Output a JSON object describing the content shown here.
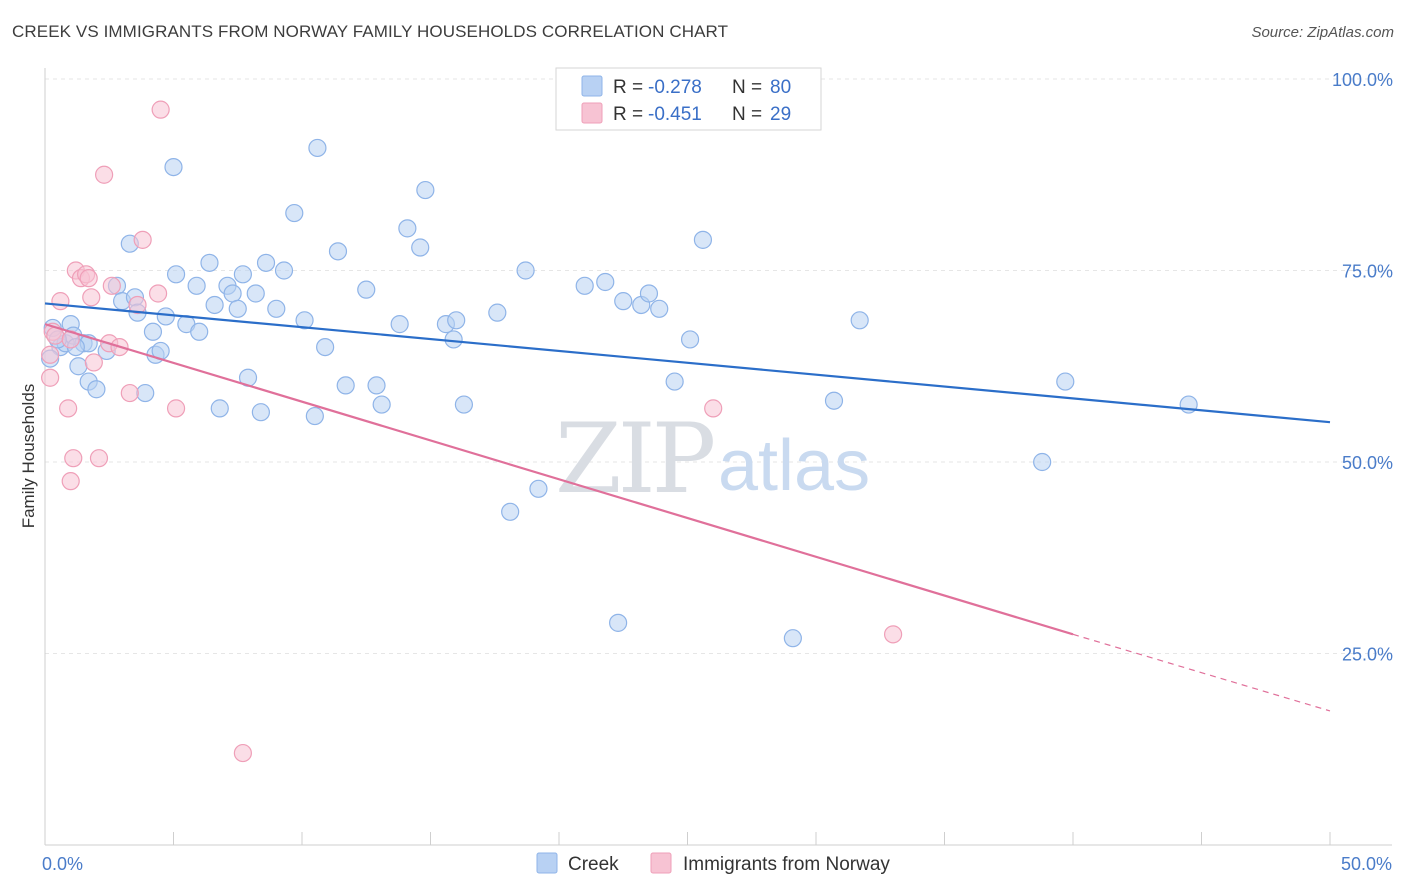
{
  "title": "CREEK VS IMMIGRANTS FROM NORWAY FAMILY HOUSEHOLDS CORRELATION CHART",
  "source": "Source: ZipAtlas.com",
  "watermark": {
    "zip": "ZIP",
    "atlas": "atlas"
  },
  "legend": {
    "rows": [
      {
        "r_label": "R = ",
        "r_value": "-0.278",
        "n_label": "N = ",
        "n_value": "80"
      },
      {
        "r_label": "R = ",
        "r_value": "-0.451",
        "n_label": "N = ",
        "n_value": "29"
      }
    ]
  },
  "colors": {
    "creek_fill": "#b8d1f3",
    "creek_stroke": "#8fb4e8",
    "creek_line": "#2b6ec9",
    "norway_fill": "#f7c3d3",
    "norway_stroke": "#ef9fb8",
    "norway_line": "#e0709a",
    "grid": "#e6e6e6",
    "axis_label": "#4a7cc9"
  },
  "chart_data": {
    "type": "scatter",
    "title": "CREEK VS IMMIGRANTS FROM NORWAY FAMILY HOUSEHOLDS CORRELATION CHART",
    "xlabel": "",
    "ylabel": "Family Households",
    "xlim": [
      0,
      50
    ],
    "ylim": [
      0,
      105
    ],
    "x_tick_labels": [
      "0.0%",
      "50.0%"
    ],
    "y_tick_labels": [
      "25.0%",
      "50.0%",
      "75.0%",
      "100.0%"
    ],
    "y_ticks": [
      25,
      50,
      75,
      100
    ],
    "grid": true,
    "legend_position": "top-center",
    "series": [
      {
        "name": "Creek",
        "r": -0.278,
        "n": 80,
        "trend": {
          "x0": 0,
          "y0": 70.7,
          "x1": 50,
          "y1": 55.2
        },
        "points": [
          [
            0.3,
            67.5
          ],
          [
            0.6,
            65.0
          ],
          [
            0.8,
            65.5
          ],
          [
            1.0,
            68.0
          ],
          [
            1.1,
            66.5
          ],
          [
            1.3,
            62.5
          ],
          [
            1.5,
            65.5
          ],
          [
            1.7,
            60.5
          ],
          [
            1.7,
            65.5
          ],
          [
            2.4,
            64.5
          ],
          [
            2.8,
            73.0
          ],
          [
            3.0,
            71.0
          ],
          [
            3.3,
            78.5
          ],
          [
            3.5,
            71.5
          ],
          [
            3.6,
            69.5
          ],
          [
            3.9,
            59.0
          ],
          [
            4.2,
            67.0
          ],
          [
            4.3,
            64.0
          ],
          [
            4.5,
            64.5
          ],
          [
            4.7,
            69.0
          ],
          [
            5.0,
            88.5
          ],
          [
            5.1,
            74.5
          ],
          [
            5.5,
            68.0
          ],
          [
            5.9,
            73.0
          ],
          [
            6.0,
            67.0
          ],
          [
            6.4,
            76.0
          ],
          [
            6.6,
            70.5
          ],
          [
            6.8,
            57.0
          ],
          [
            7.1,
            73.0
          ],
          [
            7.3,
            72.0
          ],
          [
            7.5,
            70.0
          ],
          [
            7.7,
            74.5
          ],
          [
            7.9,
            61.0
          ],
          [
            8.2,
            72.0
          ],
          [
            8.4,
            56.5
          ],
          [
            8.6,
            76.0
          ],
          [
            9.0,
            70.0
          ],
          [
            9.3,
            75.0
          ],
          [
            9.7,
            82.5
          ],
          [
            10.1,
            68.5
          ],
          [
            10.5,
            56.0
          ],
          [
            10.6,
            91.0
          ],
          [
            10.9,
            65.0
          ],
          [
            11.4,
            77.5
          ],
          [
            11.7,
            60.0
          ],
          [
            12.5,
            72.5
          ],
          [
            12.9,
            60.0
          ],
          [
            13.1,
            57.5
          ],
          [
            13.8,
            68.0
          ],
          [
            14.1,
            80.5
          ],
          [
            14.6,
            78.0
          ],
          [
            14.8,
            85.5
          ],
          [
            15.6,
            68.0
          ],
          [
            15.9,
            66.0
          ],
          [
            16.0,
            68.5
          ],
          [
            16.3,
            57.5
          ],
          [
            17.6,
            69.5
          ],
          [
            18.1,
            43.5
          ],
          [
            18.7,
            75.0
          ],
          [
            19.2,
            46.5
          ],
          [
            21.0,
            73.0
          ],
          [
            21.8,
            73.5
          ],
          [
            22.3,
            29.0
          ],
          [
            22.5,
            71.0
          ],
          [
            23.2,
            70.5
          ],
          [
            23.5,
            72.0
          ],
          [
            23.9,
            70.0
          ],
          [
            24.5,
            60.5
          ],
          [
            25.1,
            66.0
          ],
          [
            25.6,
            79.0
          ],
          [
            29.1,
            27.0
          ],
          [
            30.7,
            58.0
          ],
          [
            31.7,
            68.5
          ],
          [
            38.8,
            50.0
          ],
          [
            39.7,
            60.5
          ],
          [
            44.5,
            57.5
          ],
          [
            0.2,
            63.5
          ],
          [
            2.0,
            59.5
          ],
          [
            1.2,
            65.0
          ],
          [
            0.5,
            66.0
          ]
        ]
      },
      {
        "name": "Immigrants from Norway",
        "r": -0.451,
        "n": 29,
        "trend": {
          "x0": 0,
          "y0": 68.0,
          "x1": 40,
          "y1": 27.5,
          "dash_x1": 50,
          "dash_y1": 17.5
        },
        "points": [
          [
            0.3,
            67.0
          ],
          [
            0.4,
            66.5
          ],
          [
            0.6,
            71.0
          ],
          [
            0.9,
            57.0
          ],
          [
            1.0,
            47.5
          ],
          [
            1.0,
            66.0
          ],
          [
            1.1,
            50.5
          ],
          [
            1.2,
            75.0
          ],
          [
            1.4,
            74.0
          ],
          [
            1.6,
            74.5
          ],
          [
            1.7,
            74.0
          ],
          [
            1.8,
            71.5
          ],
          [
            2.1,
            50.5
          ],
          [
            2.3,
            87.5
          ],
          [
            2.5,
            65.5
          ],
          [
            2.6,
            73.0
          ],
          [
            2.9,
            65.0
          ],
          [
            3.3,
            59.0
          ],
          [
            3.6,
            70.5
          ],
          [
            3.8,
            79.0
          ],
          [
            4.4,
            72.0
          ],
          [
            4.5,
            96.0
          ],
          [
            5.1,
            57.0
          ],
          [
            7.7,
            12.0
          ],
          [
            26.0,
            57.0
          ],
          [
            33.0,
            27.5
          ],
          [
            0.2,
            61.0
          ],
          [
            0.2,
            64.0
          ],
          [
            1.9,
            63.0
          ]
        ]
      }
    ]
  }
}
